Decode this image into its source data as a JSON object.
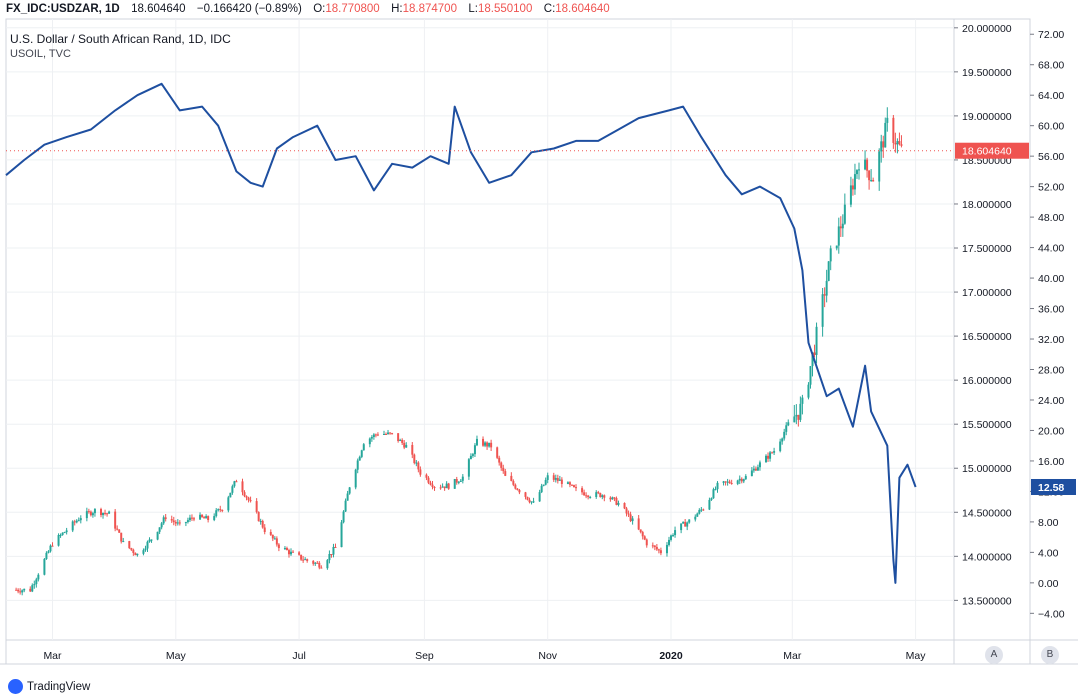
{
  "header": {
    "symbol": "FX_IDC:USDZAR, 1D",
    "last": "18.604640",
    "change": "−0.166420 (−0.89%)",
    "o_label": "O:",
    "o_value": "18.770800",
    "h_label": "H:",
    "h_value": "18.874700",
    "l_label": "L:",
    "l_value": "18.550100",
    "c_label": "C:",
    "c_value": "18.604640"
  },
  "legend": {
    "main": "U.S. Dollar / South African Rand, 1D, IDC",
    "overlay": "USOIL, TVC"
  },
  "footer": {
    "brand": "TradingView",
    "btn_a": "A",
    "btn_b": "B"
  },
  "colors": {
    "up": "#26a69a",
    "down": "#ef5350",
    "oil_line": "#1e4fa0",
    "grid": "#eef0f3",
    "last_badge_usdzar": "#ef5350",
    "last_badge_oil": "#1e4fa0"
  },
  "chart_data": {
    "type": "candlestick_with_line_overlay",
    "x_tick_labels": [
      "Mar",
      "May",
      "Jul",
      "Sep",
      "Nov",
      "2020",
      "Mar",
      "May"
    ],
    "x_range": [
      "2019-02-06",
      "2020-05-20"
    ],
    "right_axis_usdzar": {
      "ticks": [
        "20.000000",
        "19.500000",
        "19.000000",
        "18.500000",
        "18.000000",
        "17.500000",
        "17.000000",
        "16.500000",
        "16.000000",
        "15.500000",
        "15.000000",
        "14.500000",
        "14.000000",
        "13.500000"
      ],
      "range": [
        13.05,
        20.1
      ],
      "last_value_label": "18.604640"
    },
    "right_axis_usoil": {
      "ticks": [
        "72.00",
        "68.00",
        "64.00",
        "60.00",
        "56.00",
        "52.00",
        "48.00",
        "44.00",
        "40.00",
        "36.00",
        "32.00",
        "28.00",
        "24.00",
        "20.00",
        "16.00",
        "12.00",
        "8.00",
        "4.00",
        "0.00",
        "−4.00"
      ],
      "range": [
        -7.5,
        74
      ],
      "last_value_label": "12.58"
    },
    "series": [
      {
        "name": "U.S. Dollar / South African Rand",
        "kind": "candlestick",
        "closes_x": [
          "2019-02-18",
          "2019-03-01",
          "2019-03-08",
          "2019-03-15",
          "2019-03-22",
          "2019-03-29",
          "2019-04-05",
          "2019-04-12",
          "2019-04-19",
          "2019-04-26",
          "2019-05-03",
          "2019-05-10",
          "2019-05-17",
          "2019-05-24",
          "2019-05-31",
          "2019-06-07",
          "2019-06-14",
          "2019-06-21",
          "2019-06-28",
          "2019-07-05",
          "2019-07-12",
          "2019-07-19",
          "2019-07-26",
          "2019-08-02",
          "2019-08-09",
          "2019-08-16",
          "2019-08-23",
          "2019-08-30",
          "2019-09-06",
          "2019-09-13",
          "2019-09-20",
          "2019-09-27",
          "2019-10-04",
          "2019-10-11",
          "2019-10-18",
          "2019-10-25",
          "2019-11-01",
          "2019-11-08",
          "2019-11-15",
          "2019-11-22",
          "2019-11-29",
          "2019-12-06",
          "2019-12-13",
          "2019-12-20",
          "2019-12-27",
          "2020-01-03",
          "2020-01-10",
          "2020-01-17",
          "2020-01-24",
          "2020-01-31",
          "2020-02-07",
          "2020-02-14",
          "2020-02-21",
          "2020-02-28",
          "2020-03-06",
          "2020-03-13",
          "2020-03-20",
          "2020-03-27",
          "2020-04-03",
          "2020-04-10",
          "2020-04-17",
          "2020-04-24"
        ],
        "closes_y": [
          13.62,
          14.15,
          14.3,
          14.45,
          14.52,
          14.48,
          14.15,
          14.02,
          14.2,
          14.45,
          14.35,
          14.45,
          14.42,
          14.55,
          14.87,
          14.6,
          14.3,
          14.12,
          14.02,
          13.95,
          13.9,
          14.1,
          14.8,
          15.3,
          15.4,
          15.38,
          15.25,
          14.95,
          14.8,
          14.8,
          14.9,
          15.3,
          15.25,
          14.9,
          14.75,
          14.6,
          14.9,
          14.85,
          14.75,
          14.7,
          14.7,
          14.6,
          14.4,
          14.15,
          14.05,
          14.3,
          14.4,
          14.55,
          14.8,
          14.85,
          14.9,
          15.05,
          15.2,
          15.5,
          15.7,
          16.5,
          17.4,
          17.9,
          18.5,
          18.3,
          18.9,
          18.6
        ]
      },
      {
        "name": "USOIL",
        "kind": "line",
        "x": [
          "2019-02-06",
          "2019-02-15",
          "2019-02-25",
          "2019-03-08",
          "2019-03-20",
          "2019-04-01",
          "2019-04-12",
          "2019-04-24",
          "2019-05-03",
          "2019-05-14",
          "2019-05-22",
          "2019-05-31",
          "2019-06-07",
          "2019-06-13",
          "2019-06-20",
          "2019-06-28",
          "2019-07-10",
          "2019-07-19",
          "2019-07-29",
          "2019-08-07",
          "2019-08-16",
          "2019-08-26",
          "2019-09-04",
          "2019-09-13",
          "2019-09-16",
          "2019-09-24",
          "2019-10-03",
          "2019-10-14",
          "2019-10-24",
          "2019-11-04",
          "2019-11-15",
          "2019-11-26",
          "2019-12-06",
          "2019-12-16",
          "2019-12-31",
          "2020-01-07",
          "2020-01-16",
          "2020-01-28",
          "2020-02-05",
          "2020-02-14",
          "2020-02-24",
          "2020-03-02",
          "2020-03-06",
          "2020-03-09",
          "2020-03-18",
          "2020-03-24",
          "2020-03-31",
          "2020-04-06",
          "2020-04-09",
          "2020-04-17",
          "2020-04-20",
          "2020-04-21",
          "2020-04-23",
          "2020-04-27",
          "2020-05-01"
        ],
        "y": [
          53.5,
          55.5,
          57.5,
          58.5,
          59.5,
          62.0,
          64.0,
          65.5,
          62.0,
          62.5,
          60.0,
          54.0,
          52.5,
          52.0,
          57.0,
          58.5,
          60.0,
          55.5,
          56.0,
          51.5,
          55.0,
          54.5,
          56.0,
          55.0,
          62.5,
          56.5,
          52.5,
          53.5,
          56.5,
          57.0,
          58.0,
          58.0,
          59.5,
          61.0,
          62.0,
          62.5,
          58.5,
          53.5,
          51.0,
          52.0,
          50.5,
          46.5,
          41.0,
          31.5,
          24.5,
          25.5,
          20.5,
          28.5,
          22.5,
          18.0,
          3.0,
          0.0,
          13.8,
          15.5,
          12.58
        ]
      }
    ]
  }
}
